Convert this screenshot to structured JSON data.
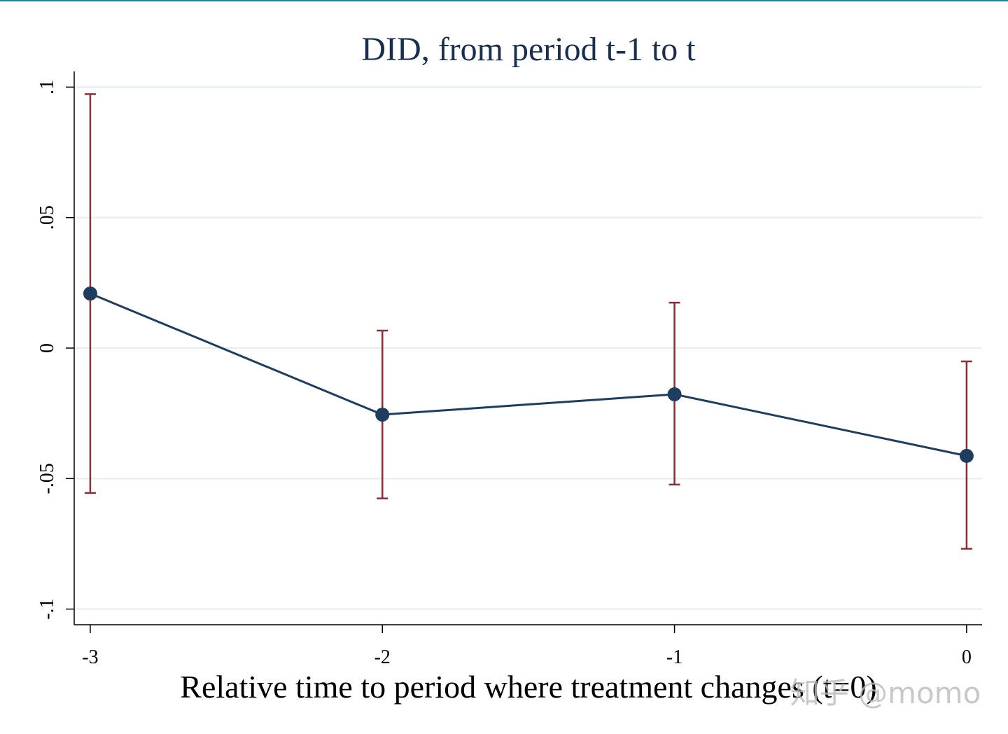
{
  "chart_data": {
    "type": "line",
    "title": "DID, from period t-1 to t",
    "x_label": "Relative time to period where treatment changes (t=0)",
    "watermark": "知乎 @momo",
    "x": [
      -3,
      -2,
      -1,
      0
    ],
    "values": [
      0.0209,
      -0.0255,
      -0.0177,
      -0.0413
    ],
    "ci_lower": [
      -0.0555,
      -0.0576,
      -0.0523,
      -0.0769
    ],
    "ci_upper": [
      0.0973,
      0.0067,
      0.0174,
      -0.0051
    ],
    "line_color": "#1f3e5f",
    "ci_color": "#8b2e35",
    "xlim": [
      -3.055,
      0.053
    ],
    "ylim": [
      -0.106,
      0.106
    ],
    "xticks": [
      -3,
      -2,
      -1,
      0
    ],
    "yticks": [
      {
        "value": -0.1,
        "label": "-.1"
      },
      {
        "value": -0.05,
        "label": "-.05"
      },
      0,
      {
        "value": 0.05,
        "label": ".05"
      },
      {
        "value": 0.1,
        "label": ".1"
      }
    ],
    "grid": true
  }
}
